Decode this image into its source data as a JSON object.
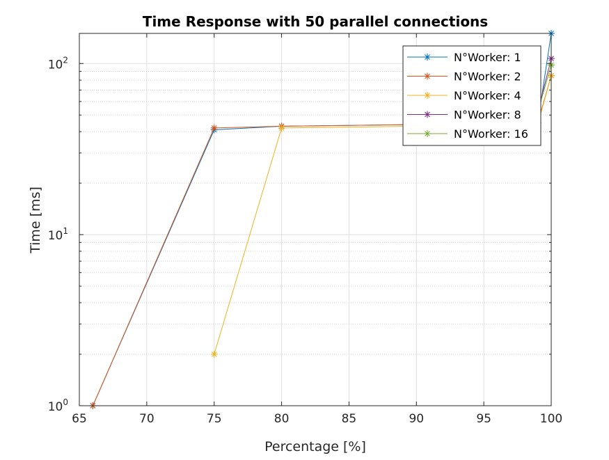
{
  "chart_data": {
    "type": "line",
    "title": "Time Response with 50 parallel connections",
    "xlabel": "Percentage [%]",
    "ylabel": "Time [ms]",
    "xlim": [
      65,
      100
    ],
    "ylim": [
      1,
      150
    ],
    "yscale": "log",
    "grid": true,
    "legend_position": "top-right",
    "x_ticks": [
      65,
      70,
      75,
      80,
      85,
      90,
      95,
      100
    ],
    "x_tick_labels": [
      "65",
      "70",
      "75",
      "80",
      "85",
      "90",
      "95",
      "100"
    ],
    "y_ticks": [
      {
        "value": 1,
        "base": "10",
        "exp": "0"
      },
      {
        "value": 10,
        "base": "10",
        "exp": "1"
      },
      {
        "value": 100,
        "base": "10",
        "exp": "2"
      }
    ],
    "series": [
      {
        "name": "N°Worker: 1",
        "color": "#0072BD",
        "x": [
          66,
          75,
          80,
          90,
          99,
          100
        ],
        "y": [
          1,
          41,
          43,
          44,
          45,
          150
        ]
      },
      {
        "name": "N°Worker: 2",
        "color": "#D95319",
        "x": [
          66,
          75,
          80,
          90,
          99,
          100
        ],
        "y": [
          1,
          42,
          43,
          44,
          45,
          85
        ]
      },
      {
        "name": "N°Worker: 4",
        "color": "#EDB120",
        "x": [
          75,
          80,
          90,
          99,
          100
        ],
        "y": [
          2,
          42,
          43,
          44,
          85
        ]
      },
      {
        "name": "N°Worker: 8",
        "color": "#7E2F8E",
        "x": [
          99,
          100
        ],
        "y": [
          52,
          107
        ]
      },
      {
        "name": "N°Worker: 16",
        "color": "#77AC30",
        "x": [
          99,
          100
        ],
        "y": [
          52,
          98
        ]
      }
    ]
  }
}
